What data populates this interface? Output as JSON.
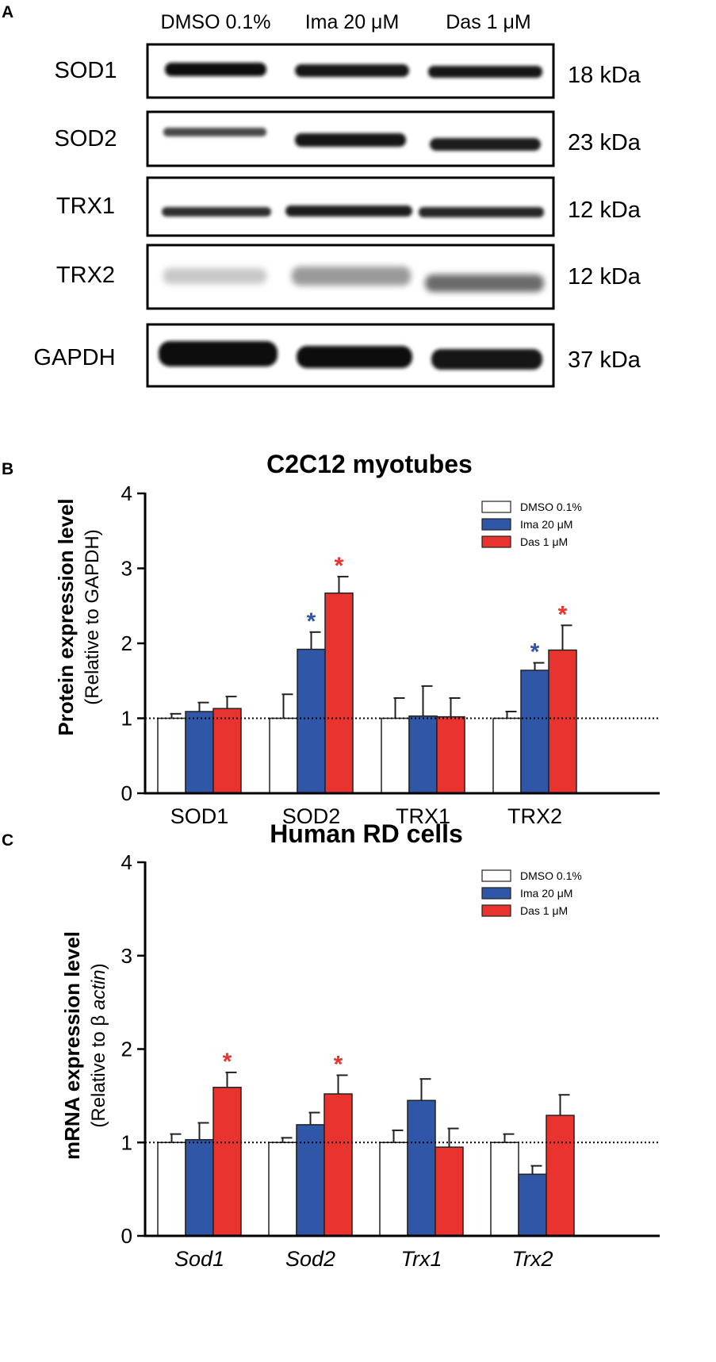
{
  "panels": {
    "a": "A",
    "b": "B",
    "c": "C"
  },
  "blot": {
    "lanes": [
      "DMSO 0.1%",
      "Ima 20 μM",
      "Das 1 μM"
    ],
    "rows": [
      {
        "protein": "SOD1",
        "size": "18 kDa"
      },
      {
        "protein": "SOD2",
        "size": "23 kDa"
      },
      {
        "protein": "TRX1",
        "size": "12 kDa"
      },
      {
        "protein": "TRX2",
        "size": "12 kDa"
      },
      {
        "protein": "GAPDH",
        "size": "37 kDa"
      }
    ]
  },
  "colors": {
    "dmso": "#ffffff",
    "ima": "#2f56a7",
    "das": "#e8332f",
    "axis": "#000000"
  },
  "chart_data": [
    {
      "type": "bar",
      "title": "C2C12 myotubes",
      "ylabel": "Protein expression level",
      "ylabel2": "(Relative to GAPDH)",
      "ylim": [
        0,
        4
      ],
      "yticks": [
        "0",
        "1",
        "2",
        "3",
        "4"
      ],
      "reference_line": 1,
      "categories": [
        "SOD1",
        "SOD2",
        "TRX1",
        "TRX2"
      ],
      "italic_categories": false,
      "legend_position": "top-right",
      "series": [
        {
          "name": "DMSO 0.1%",
          "values": [
            1.0,
            1.0,
            1.0,
            1.0
          ],
          "errors": [
            0.06,
            0.32,
            0.27,
            0.09
          ],
          "significant": [
            false,
            false,
            false,
            false
          ]
        },
        {
          "name": "Ima 20 μM",
          "values": [
            1.09,
            1.92,
            1.03,
            1.64
          ],
          "errors": [
            0.12,
            0.23,
            0.4,
            0.1
          ],
          "significant": [
            false,
            true,
            false,
            true
          ]
        },
        {
          "name": "Das 1 μM",
          "values": [
            1.13,
            2.67,
            1.02,
            1.91
          ],
          "errors": [
            0.16,
            0.22,
            0.25,
            0.33
          ],
          "significant": [
            false,
            true,
            false,
            true
          ]
        }
      ],
      "significance_mark": "*"
    },
    {
      "type": "bar",
      "title": "Human RD cells",
      "ylabel": "mRNA expression level",
      "ylabel2": "(Relative to β actin)",
      "ylim": [
        0,
        4
      ],
      "yticks": [
        "0",
        "1",
        "2",
        "3",
        "4"
      ],
      "reference_line": 1,
      "categories": [
        "Sod1",
        "Sod2",
        "Trx1",
        "Trx2"
      ],
      "italic_categories": true,
      "legend_position": "top-right",
      "series": [
        {
          "name": "DMSO 0.1%",
          "values": [
            1.0,
            1.0,
            1.0,
            1.0
          ],
          "errors": [
            0.09,
            0.05,
            0.13,
            0.09
          ],
          "significant": [
            false,
            false,
            false,
            false
          ]
        },
        {
          "name": "Ima 20 μM",
          "values": [
            1.03,
            1.19,
            1.45,
            0.66
          ],
          "errors": [
            0.18,
            0.13,
            0.23,
            0.09
          ],
          "significant": [
            false,
            false,
            false,
            false
          ]
        },
        {
          "name": "Das 1 μM",
          "values": [
            1.59,
            1.52,
            0.95,
            1.29
          ],
          "errors": [
            0.16,
            0.2,
            0.2,
            0.22
          ],
          "significant": [
            true,
            true,
            false,
            false
          ]
        }
      ],
      "significance_mark": "*"
    }
  ]
}
